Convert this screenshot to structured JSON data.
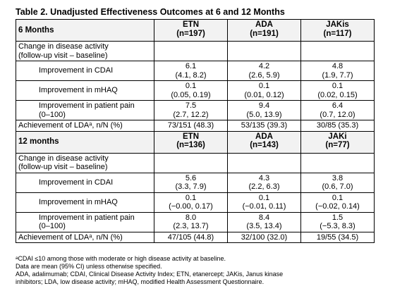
{
  "title": "Table 2. Unadjusted Effectiveness Outcomes at 6 and 12 Months",
  "sections": [
    {
      "header": [
        "6 Months",
        [
          "ETN",
          "(n=197)"
        ],
        [
          "ADA",
          "(n=191)"
        ],
        [
          "JAKis",
          "(n=117)"
        ]
      ],
      "rows": [
        {
          "label": [
            "Change in disease activity",
            "(follow-up visit – baseline)"
          ],
          "cells": []
        },
        {
          "label": [
            "Improvement in CDAI"
          ],
          "cells": [
            [
              "6.1",
              "(4.1, 8.2)"
            ],
            [
              "4.2",
              "(2.6, 5.9)"
            ],
            [
              "4.8",
              "(1.9, 7.7)"
            ]
          ]
        },
        {
          "label": [
            "Improvement in mHAQ"
          ],
          "cells": [
            [
              "0.1",
              "(0.05, 0.19)"
            ],
            [
              "0.1",
              "(0.01, 0.12)"
            ],
            [
              "0.1",
              "(0.02, 0.15)"
            ]
          ]
        },
        {
          "label": [
            "Improvement in patient pain",
            "(0–100)"
          ],
          "cells": [
            [
              "7.5",
              "(2.7, 12.2)"
            ],
            [
              "9.4",
              "(5.0, 13.9)"
            ],
            [
              "6.4",
              "(0.7, 12.0)"
            ]
          ]
        },
        {
          "label": [
            "Achievement of LDAᵃ, n/N (%)"
          ],
          "cells": [
            [
              "73/151 (48.3)"
            ],
            [
              "53/135 (39.3)"
            ],
            [
              "30/85 (35.3)"
            ]
          ]
        }
      ]
    },
    {
      "header": [
        "12 months",
        [
          "ETN",
          "(n=136)"
        ],
        [
          "ADA",
          "(n=143)"
        ],
        [
          "JAKi",
          "(n=77)"
        ]
      ],
      "rows": [
        {
          "label": [
            "Change in disease activity",
            "(follow-up visit – baseline)"
          ],
          "cells": []
        },
        {
          "label": [
            "Improvement in CDAI"
          ],
          "cells": [
            [
              "5.6",
              "(3.3, 7.9)"
            ],
            [
              "4.3",
              "(2.2, 6.3)"
            ],
            [
              "3.8",
              "(0.6, 7.0)"
            ]
          ]
        },
        {
          "label": [
            "Improvement in mHAQ"
          ],
          "cells": [
            [
              "0.1",
              "(−0.00, 0.17)"
            ],
            [
              "0.1",
              "(−0.01, 0.11)"
            ],
            [
              "0.1",
              "(−0.02, 0.14)"
            ]
          ]
        },
        {
          "label": [
            "Improvement in patient pain",
            "(0–100)"
          ],
          "cells": [
            [
              "8.0",
              "(2.3, 13.7)"
            ],
            [
              "8.4",
              "(3.5, 13.4)"
            ],
            [
              "1.5",
              "(−5.3, 8.3)"
            ]
          ]
        },
        {
          "label": [
            "Achievement of LDAᵃ, n/N (%)"
          ],
          "cells": [
            [
              "47/105 (44.8)"
            ],
            [
              "32/100 (32.0)"
            ],
            [
              "19/55 (34.5)"
            ]
          ]
        }
      ]
    }
  ],
  "footnotes": [
    "ᵃCDAI ≤10 among those with moderate or high disease activity at baseline.",
    "Data are mean (95% CI) unless otherwise specified.",
    "ADA, adalimumab; CDAI, Clinical Disease Activity Index; ETN, etanercept; JAKis, Janus kinase",
    "inhibitors; LDA, low disease activity; mHAQ, modified Health Assessment Questionnaire."
  ]
}
